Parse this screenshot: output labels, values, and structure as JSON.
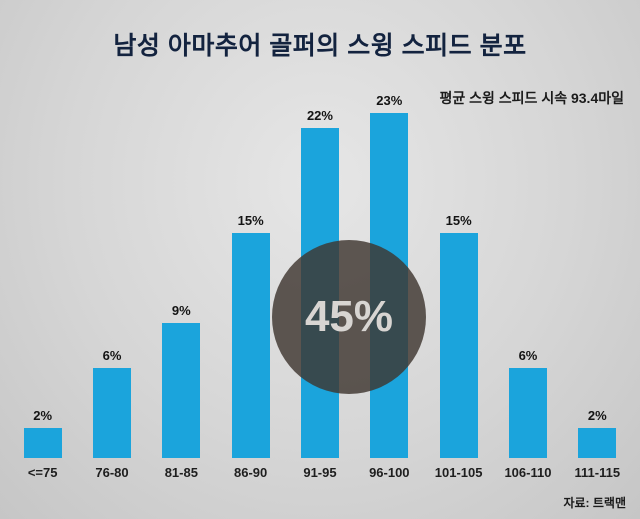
{
  "title": "남성 아마추어 골퍼의 스윙 스피드 분포",
  "annotation": "평균 스윙 스피드 시속 93.4마일",
  "overlay_label": "45%",
  "source": "자료: 트랙맨",
  "colors": {
    "bar": "#1ba4dc",
    "title": "#13233f",
    "overlay_circle": "rgba(62,54,48,0.82)",
    "background": "#d6d6d6"
  },
  "chart_data": {
    "type": "bar",
    "title": "남성 아마추어 골퍼의 스윙 스피드 분포",
    "categories": [
      "<=75",
      "76-80",
      "81-85",
      "86-90",
      "91-95",
      "96-100",
      "101-105",
      "106-110",
      "111-115"
    ],
    "values": [
      2,
      6,
      9,
      15,
      22,
      23,
      15,
      6,
      2
    ],
    "value_suffix": "%",
    "xlabel": "",
    "ylabel": "",
    "ylim": [
      0,
      25
    ],
    "grid": false,
    "legend": "none",
    "annotations": [
      "평균 스윙 스피드 시속 93.4마일",
      "45%"
    ]
  }
}
